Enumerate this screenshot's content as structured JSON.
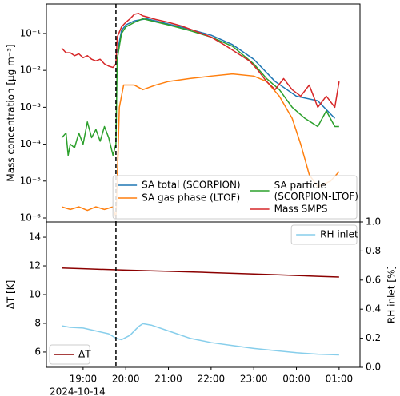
{
  "chart_data": [
    {
      "type": "line",
      "ylabel": "Mass concentration [μg m⁻³]",
      "log_y": true,
      "xlim": [
        18.14,
        25.49
      ],
      "ylim": [
        7.8e-07,
        0.63
      ],
      "yticks": [
        {
          "value": 1e-06,
          "label": "10⁻⁶"
        },
        {
          "value": 1e-05,
          "label": "10⁻⁵"
        },
        {
          "value": 0.0001,
          "label": "10⁻⁴"
        },
        {
          "value": 0.001,
          "label": "10⁻³"
        },
        {
          "value": 0.01,
          "label": "10⁻²"
        },
        {
          "value": 0.1,
          "label": "10⁻¹"
        }
      ],
      "vline": 19.77,
      "legend": "lower right",
      "legend_columns": 2,
      "series": [
        {
          "name": "SA total (SCORPION)",
          "color": "#1f77b4",
          "x": [
            19.8,
            19.9,
            20.0,
            20.2,
            20.5,
            21.0,
            21.5,
            22.0,
            22.5,
            23.0,
            23.5,
            24.0,
            24.5,
            24.9
          ],
          "values": [
            0.03,
            0.12,
            0.17,
            0.22,
            0.25,
            0.18,
            0.13,
            0.09,
            0.05,
            0.02,
            0.005,
            0.002,
            0.0015,
            0.0005
          ]
        },
        {
          "name": "SA gas phase (LTOF)",
          "color": "#ff7f0e",
          "x": [
            18.5,
            18.7,
            18.9,
            19.1,
            19.3,
            19.5,
            19.7,
            19.77,
            19.8,
            19.85,
            19.95,
            20.2,
            20.4,
            20.7,
            21.0,
            21.5,
            22.0,
            22.5,
            23.0,
            23.3,
            23.6,
            23.9,
            24.1,
            24.3,
            24.5,
            24.8,
            25.0
          ],
          "values": [
            2e-06,
            1.7e-06,
            2e-06,
            1.6e-06,
            2e-06,
            1.7e-06,
            2e-06,
            1e-06,
            1e-05,
            0.001,
            0.004,
            0.004,
            0.003,
            0.004,
            0.005,
            0.006,
            0.007,
            0.008,
            0.007,
            0.005,
            0.002,
            0.0005,
            0.0001,
            1.5e-05,
            7e-06,
            1e-05,
            1.8e-05
          ]
        },
        {
          "name": "SA particle\n(SCORPION-LTOF)",
          "color": "#2ca02c",
          "x": [
            18.5,
            18.6,
            18.65,
            18.7,
            18.8,
            18.9,
            19.0,
            19.1,
            19.2,
            19.3,
            19.4,
            19.5,
            19.6,
            19.7,
            19.77,
            19.8,
            19.9,
            20.0,
            20.2,
            20.4,
            20.6,
            21.0,
            21.5,
            22.0,
            22.5,
            23.0,
            23.3,
            23.6,
            23.9,
            24.2,
            24.5,
            24.7,
            24.9,
            25.0
          ],
          "values": [
            0.00015,
            0.0002,
            5e-05,
            0.0001,
            8e-05,
            0.0002,
            0.0001,
            0.0004,
            0.00015,
            0.00025,
            0.00012,
            0.0003,
            0.00015,
            5e-05,
            0.0001,
            0.02,
            0.1,
            0.15,
            0.2,
            0.25,
            0.22,
            0.17,
            0.12,
            0.08,
            0.045,
            0.015,
            0.006,
            0.003,
            0.001,
            0.0005,
            0.0003,
            0.0008,
            0.0003,
            0.0003
          ]
        },
        {
          "name": "Mass SMPS",
          "color": "#d62728",
          "x": [
            18.5,
            18.6,
            18.7,
            18.8,
            18.9,
            19.0,
            19.1,
            19.2,
            19.3,
            19.4,
            19.5,
            19.6,
            19.7,
            19.77,
            19.8,
            19.9,
            20.0,
            20.1,
            20.2,
            20.3,
            20.4,
            20.5,
            20.7,
            21.0,
            21.3,
            21.6,
            22.0,
            22.3,
            22.6,
            22.9,
            23.1,
            23.3,
            23.5,
            23.7,
            23.9,
            24.1,
            24.3,
            24.5,
            24.7,
            24.9,
            25.0
          ],
          "values": [
            0.04,
            0.03,
            0.03,
            0.025,
            0.028,
            0.022,
            0.025,
            0.02,
            0.018,
            0.02,
            0.015,
            0.013,
            0.012,
            0.015,
            0.08,
            0.15,
            0.2,
            0.25,
            0.33,
            0.35,
            0.3,
            0.28,
            0.24,
            0.2,
            0.16,
            0.12,
            0.08,
            0.05,
            0.03,
            0.018,
            0.01,
            0.005,
            0.003,
            0.006,
            0.003,
            0.002,
            0.004,
            0.001,
            0.002,
            0.001,
            0.005
          ]
        }
      ]
    },
    {
      "type": "line",
      "ylabel": "ΔT [K]",
      "y2label": "RH inlet [%]",
      "date_label": "2024-10-14",
      "xlim": [
        18.14,
        25.49
      ],
      "ylim": [
        4.94,
        15.06
      ],
      "y2lim": [
        0,
        1
      ],
      "xticks": [
        {
          "value": 19,
          "label": "19:00"
        },
        {
          "value": 20,
          "label": "20:00"
        },
        {
          "value": 21,
          "label": "21:00"
        },
        {
          "value": 22,
          "label": "22:00"
        },
        {
          "value": 23,
          "label": "23:00"
        },
        {
          "value": 24,
          "label": "00:00"
        },
        {
          "value": 25,
          "label": "01:00"
        }
      ],
      "yticks": [
        6,
        8,
        10,
        12,
        14
      ],
      "y2ticks": [
        {
          "value": 0,
          "label": "0.0"
        },
        0.2,
        0.4,
        0.6,
        0.8,
        {
          "value": 1,
          "label": "1.0"
        }
      ],
      "vline": 19.77,
      "legend": {
        "y": "lower left",
        "y2": "upper right"
      },
      "series": [
        {
          "name": "ΔT",
          "color": "#8b0000",
          "x": [
            18.5,
            19,
            19.5,
            20,
            20.5,
            21,
            21.5,
            22,
            22.5,
            23,
            23.5,
            24,
            24.5,
            25
          ],
          "values": [
            11.85,
            11.8,
            11.75,
            11.7,
            11.66,
            11.62,
            11.58,
            11.53,
            11.48,
            11.43,
            11.38,
            11.33,
            11.27,
            11.22
          ]
        },
        {
          "name": "RH inlet",
          "color": "#87ceeb",
          "axis": "y2",
          "x": [
            18.5,
            18.7,
            19,
            19.3,
            19.6,
            19.77,
            19.9,
            20.1,
            20.3,
            20.4,
            20.6,
            21,
            21.5,
            22,
            22.5,
            23,
            23.5,
            24,
            24.5,
            25
          ],
          "values": [
            0.285,
            0.275,
            0.27,
            0.25,
            0.23,
            0.2,
            0.19,
            0.22,
            0.28,
            0.3,
            0.29,
            0.25,
            0.2,
            0.17,
            0.15,
            0.13,
            0.115,
            0.1,
            0.09,
            0.085
          ]
        }
      ]
    }
  ]
}
